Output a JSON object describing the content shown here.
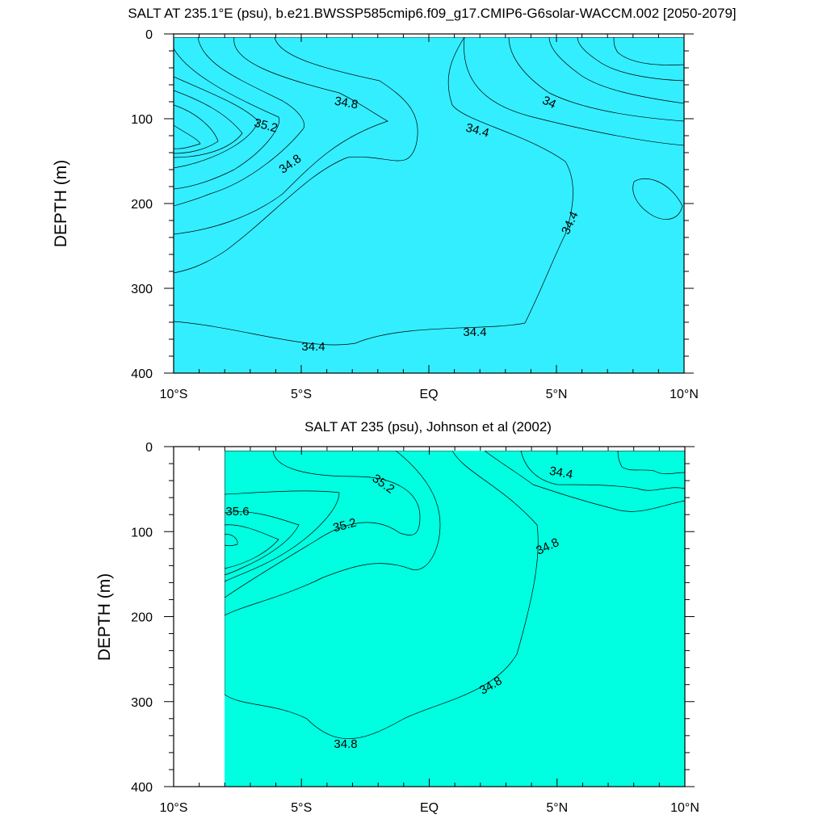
{
  "chart_data": [
    {
      "type": "contour",
      "title": "SALT AT 235.1°E (psu), b.e21.BWSSP585cmip6.f09_g17.CMIP6-G6solar-WACCM.002 [2050-2079]",
      "ylabel": "DEPTH (m)",
      "xlabel": "",
      "xlim": [
        -10,
        10
      ],
      "ylim": [
        400,
        0
      ],
      "x_ticks": [
        -10,
        -5,
        0,
        5,
        10
      ],
      "x_tick_labels": [
        "10°S",
        "5°S",
        "EQ",
        "5°N",
        "10°N"
      ],
      "y_ticks": [
        0,
        100,
        200,
        300,
        400
      ],
      "y_tick_labels": [
        "0",
        "100",
        "200",
        "300",
        "400"
      ],
      "contour_labels": [
        "34.8",
        "35.2",
        "34.8",
        "34.4",
        "34",
        "34.4",
        "34.4",
        "34.4"
      ],
      "colors": {
        "fill_base": "#33eeff",
        "fill_low": "#00c0ff",
        "fill_lowest": "#0000ee",
        "fill_mid": "#00ffe0",
        "fill_green": "#00ee33",
        "fill_high": "#ffe533"
      }
    },
    {
      "type": "contour",
      "title": "SALT AT 235 (psu), Johnson et al (2002)",
      "ylabel": "DEPTH (m)",
      "xlabel": "",
      "xlim": [
        -10,
        10
      ],
      "ylim": [
        400,
        0
      ],
      "x_ticks": [
        -10,
        -5,
        0,
        5,
        10
      ],
      "x_tick_labels": [
        "10°S",
        "5°S",
        "EQ",
        "5°N",
        "10°N"
      ],
      "y_ticks": [
        0,
        100,
        200,
        300,
        400
      ],
      "y_tick_labels": [
        "0",
        "100",
        "200",
        "300",
        "400"
      ],
      "data_start_x": -8,
      "contour_labels": [
        "35.2",
        "35.6",
        "35.2",
        "34.4",
        "34.8",
        "34.8",
        "34.8"
      ],
      "colors": {
        "fill_base": "#00ffe0",
        "fill_mid": "#00ffb0",
        "fill_low": "#33eeff",
        "fill_green": "#00ee33",
        "fill_high": "#ffe533"
      }
    }
  ]
}
